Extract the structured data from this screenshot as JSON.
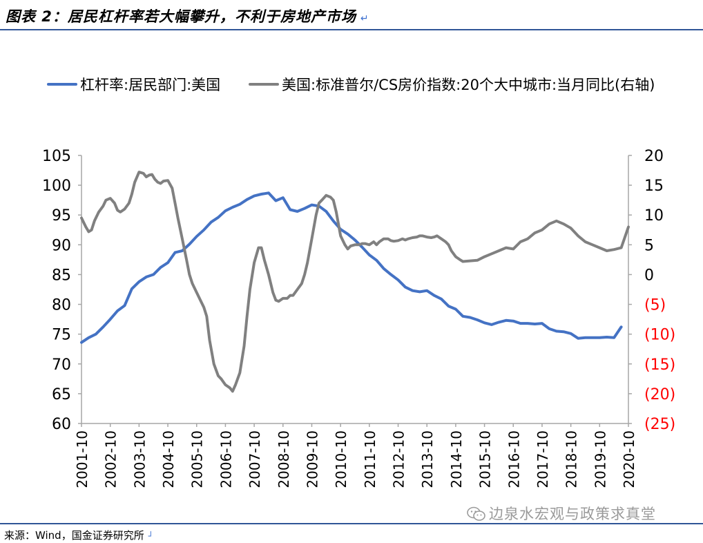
{
  "title": "图表 2：居民杠杆率若大幅攀升，不利于房地产市场",
  "title_mark": "↵",
  "source": "来源：Wind，国金证券研究所",
  "source_mark": "┘",
  "watermark": "边泉水宏观与政策求真堂",
  "colors": {
    "rule": "#2f5597",
    "series_leverage": "#4472c4",
    "series_cs": "#808080",
    "negative_labels": "#ff0000",
    "axis": "#a6a6a6"
  },
  "chart_data": {
    "type": "line",
    "legend_position": "top",
    "grid": false,
    "x_tick_labels": [
      "2001-10",
      "2002-10",
      "2003-10",
      "2004-10",
      "2005-10",
      "2006-10",
      "2007-10",
      "2008-10",
      "2009-10",
      "2010-10",
      "2011-10",
      "2012-10",
      "2013-10",
      "2014-10",
      "2015-10",
      "2016-10",
      "2017-10",
      "2018-10",
      "2019-10",
      "2020-10"
    ],
    "x_range": [
      2001.75,
      2020.75
    ],
    "y_left": {
      "range": [
        60,
        105
      ],
      "ticks": [
        105,
        100,
        95,
        90,
        85,
        80,
        75,
        70,
        65,
        60
      ],
      "tick_labels": [
        "105",
        "100",
        "95",
        "90",
        "85",
        "80",
        "75",
        "70",
        "65",
        "60"
      ]
    },
    "y_right": {
      "range": [
        -25,
        20
      ],
      "ticks": [
        20,
        15,
        10,
        5,
        0,
        -5,
        -10,
        -15,
        -20,
        -25
      ],
      "tick_labels": [
        "20",
        "15",
        "10",
        "5",
        "0",
        "(5)",
        "(10)",
        "(15)",
        "(20)",
        "(25)"
      ]
    },
    "series": [
      {
        "name": "杠杆率:居民部门:美国",
        "axis": "left",
        "color": "#4472c4",
        "x": [
          2001.75,
          2002.0,
          2002.25,
          2002.5,
          2002.75,
          2003.0,
          2003.25,
          2003.5,
          2003.75,
          2004.0,
          2004.25,
          2004.5,
          2004.75,
          2005.0,
          2005.25,
          2005.5,
          2005.75,
          2006.0,
          2006.25,
          2006.5,
          2006.75,
          2007.0,
          2007.25,
          2007.5,
          2007.75,
          2008.0,
          2008.25,
          2008.5,
          2008.75,
          2009.0,
          2009.25,
          2009.5,
          2009.75,
          2010.0,
          2010.25,
          2010.5,
          2010.75,
          2011.0,
          2011.25,
          2011.5,
          2011.75,
          2012.0,
          2012.25,
          2012.5,
          2012.75,
          2013.0,
          2013.25,
          2013.5,
          2013.75,
          2014.0,
          2014.25,
          2014.5,
          2014.75,
          2015.0,
          2015.25,
          2015.5,
          2015.75,
          2016.0,
          2016.25,
          2016.5,
          2016.75,
          2017.0,
          2017.25,
          2017.5,
          2017.75,
          2018.0,
          2018.25,
          2018.5,
          2018.75,
          2019.0,
          2019.25,
          2019.5,
          2019.75,
          2020.0,
          2020.25,
          2020.5
        ],
        "values": [
          73.6,
          74.4,
          75.0,
          76.2,
          77.5,
          78.9,
          79.8,
          82.6,
          83.8,
          84.6,
          85.0,
          86.2,
          87.0,
          88.7,
          89.0,
          90.1,
          91.4,
          92.5,
          93.8,
          94.6,
          95.7,
          96.3,
          96.8,
          97.6,
          98.2,
          98.5,
          98.7,
          97.4,
          97.9,
          95.9,
          95.6,
          96.1,
          96.7,
          96.5,
          95.6,
          94.0,
          92.6,
          91.8,
          90.8,
          89.6,
          88.3,
          87.4,
          86.0,
          85.0,
          84.1,
          82.9,
          82.3,
          82.1,
          82.3,
          81.5,
          80.9,
          79.7,
          79.2,
          78.0,
          77.8,
          77.4,
          76.9,
          76.6,
          77.0,
          77.3,
          77.2,
          76.8,
          76.8,
          76.7,
          76.8,
          75.9,
          75.5,
          75.4,
          75.1,
          74.3,
          74.4,
          74.4,
          74.4,
          74.5,
          74.4,
          76.2
        ]
      },
      {
        "name": "美国:标准普尔/CS房价指数:20个大中城市:当月同比(右轴)",
        "axis": "right",
        "color": "#808080",
        "x": [
          2001.75,
          2001.9,
          2002.0,
          2002.1,
          2002.2,
          2002.35,
          2002.5,
          2002.6,
          2002.75,
          2002.9,
          2003.0,
          2003.1,
          2003.25,
          2003.4,
          2003.5,
          2003.6,
          2003.75,
          2003.9,
          2004.0,
          2004.1,
          2004.2,
          2004.3,
          2004.4,
          2004.5,
          2004.6,
          2004.75,
          2004.9,
          2005.0,
          2005.1,
          2005.25,
          2005.4,
          2005.5,
          2005.6,
          2005.75,
          2005.9,
          2006.0,
          2006.1,
          2006.2,
          2006.35,
          2006.5,
          2006.6,
          2006.75,
          2006.9,
          2007.0,
          2007.1,
          2007.25,
          2007.4,
          2007.5,
          2007.6,
          2007.75,
          2007.9,
          2008.0,
          2008.1,
          2008.25,
          2008.4,
          2008.5,
          2008.6,
          2008.75,
          2008.9,
          2009.0,
          2009.1,
          2009.25,
          2009.4,
          2009.5,
          2009.6,
          2009.75,
          2009.9,
          2010.0,
          2010.1,
          2010.25,
          2010.4,
          2010.5,
          2010.6,
          2010.75,
          2010.9,
          2011.0,
          2011.1,
          2011.25,
          2011.4,
          2011.5,
          2011.6,
          2011.75,
          2011.9,
          2012.0,
          2012.1,
          2012.25,
          2012.4,
          2012.5,
          2012.6,
          2012.75,
          2012.9,
          2013.0,
          2013.1,
          2013.25,
          2013.4,
          2013.5,
          2013.6,
          2013.75,
          2013.9,
          2014.0,
          2014.1,
          2014.25,
          2014.4,
          2014.5,
          2014.6,
          2014.75,
          2014.9,
          2015.0,
          2015.25,
          2015.5,
          2015.75,
          2016.0,
          2016.25,
          2016.5,
          2016.75,
          2017.0,
          2017.25,
          2017.5,
          2017.75,
          2018.0,
          2018.25,
          2018.5,
          2018.75,
          2019.0,
          2019.25,
          2019.5,
          2019.75,
          2020.0,
          2020.25,
          2020.5,
          2020.75
        ],
        "values": [
          9.5,
          8.0,
          7.2,
          7.5,
          9.0,
          10.5,
          11.5,
          12.5,
          12.8,
          12.0,
          10.8,
          10.5,
          11.0,
          12.0,
          13.5,
          15.5,
          17.2,
          17.0,
          16.4,
          16.7,
          16.8,
          16.0,
          15.5,
          15.3,
          15.7,
          15.8,
          14.5,
          12.0,
          9.5,
          6.0,
          2.5,
          0.0,
          -1.5,
          -3.0,
          -4.5,
          -5.5,
          -7.0,
          -11.0,
          -15.0,
          -17.0,
          -17.5,
          -18.5,
          -19.0,
          -19.6,
          -18.5,
          -16.5,
          -12.0,
          -7.0,
          -2.5,
          2.0,
          4.5,
          4.5,
          2.5,
          0.0,
          -3.0,
          -4.3,
          -4.5,
          -4.0,
          -4.0,
          -3.5,
          -3.5,
          -2.5,
          -1.5,
          0.0,
          2.0,
          6.0,
          10.0,
          12.0,
          12.5,
          13.3,
          13.0,
          12.5,
          10.5,
          6.5,
          5.0,
          4.3,
          4.8,
          5.0,
          5.0,
          5.2,
          5.2,
          5.0,
          5.5,
          5.0,
          5.5,
          6.0,
          6.0,
          5.7,
          5.6,
          5.7,
          6.0,
          5.8,
          6.0,
          6.2,
          6.3,
          6.5,
          6.5,
          6.3,
          6.2,
          6.3,
          6.5,
          6.0,
          5.5,
          5.0,
          4.0,
          3.0,
          2.5,
          2.2,
          2.3,
          2.4,
          3.0,
          3.5,
          4.0,
          4.5,
          4.3,
          5.5,
          6.0,
          7.0,
          7.5,
          8.5,
          9.0,
          8.5,
          7.8,
          6.5,
          5.5,
          5.0,
          4.5,
          4.0,
          4.2,
          4.5,
          8.0
        ]
      }
    ]
  }
}
